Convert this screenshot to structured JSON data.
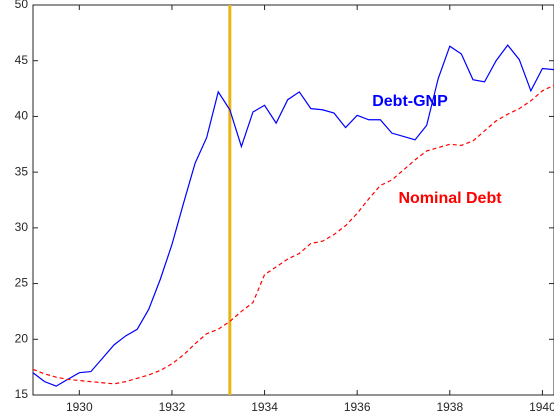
{
  "chart_data": {
    "type": "line",
    "x": [
      1929,
      1929.25,
      1929.5,
      1929.75,
      1930,
      1930.25,
      1930.5,
      1930.75,
      1931,
      1931.25,
      1931.5,
      1931.75,
      1932,
      1932.25,
      1932.5,
      1932.75,
      1933,
      1933.25,
      1933.5,
      1933.75,
      1934,
      1934.25,
      1934.5,
      1934.75,
      1935,
      1935.25,
      1935.5,
      1935.75,
      1936,
      1936.25,
      1936.5,
      1936.75,
      1937,
      1937.25,
      1937.5,
      1937.75,
      1938,
      1938.25,
      1938.5,
      1938.75,
      1939,
      1939.25,
      1939.5,
      1939.75,
      1940,
      1940.25
    ],
    "series": [
      {
        "name": "Debt-GNP",
        "color": "#0000ff",
        "dash": false,
        "values": [
          17.0,
          16.2,
          15.8,
          16.4,
          17.0,
          17.1,
          18.3,
          19.5,
          20.3,
          20.9,
          22.7,
          25.4,
          28.5,
          32.2,
          35.8,
          38.1,
          42.2,
          40.6,
          37.3,
          40.4,
          41.0,
          39.4,
          41.5,
          42.2,
          40.7,
          40.6,
          40.3,
          39.0,
          40.1,
          39.7,
          39.7,
          38.5,
          38.2,
          37.9,
          39.2,
          43.4,
          46.3,
          45.6,
          43.3,
          43.1,
          45.0,
          46.4,
          45.1,
          42.3,
          44.3,
          44.2
        ]
      },
      {
        "name": "Nominal Debt",
        "color": "#ff0000",
        "dash": true,
        "values": [
          17.3,
          16.9,
          16.6,
          16.4,
          16.3,
          16.2,
          16.1,
          16.0,
          16.2,
          16.5,
          16.8,
          17.2,
          17.8,
          18.6,
          19.6,
          20.5,
          20.9,
          21.6,
          22.5,
          23.3,
          25.8,
          26.5,
          27.2,
          27.7,
          28.6,
          28.8,
          29.4,
          30.2,
          31.3,
          32.6,
          33.8,
          34.3,
          35.2,
          36.1,
          36.9,
          37.2,
          37.5,
          37.4,
          37.8,
          38.7,
          39.6,
          40.2,
          40.7,
          41.4,
          42.3,
          42.8
        ]
      }
    ],
    "xlim": [
      1929,
      1940.25
    ],
    "ylim": [
      15,
      50
    ],
    "xticks": [
      1930,
      1932,
      1934,
      1936,
      1938,
      1940
    ],
    "yticks": [
      15,
      20,
      25,
      30,
      35,
      40,
      45,
      50
    ],
    "vline": {
      "x": 1933.25,
      "color": "#e6b514"
    }
  }
}
